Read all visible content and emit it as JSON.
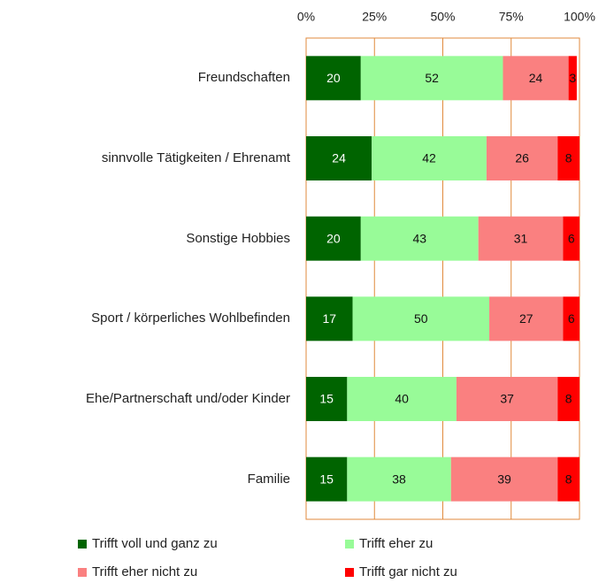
{
  "chart_data": {
    "type": "stacked-bar-horizontal",
    "categories": [
      "Freundschaften",
      "sinnvolle Tätigkeiten / Ehrenamt",
      "Sonstige Hobbies",
      "Sport / körperliches Wohlbefinden",
      "Ehe/Partnerschaft und/oder Kinder",
      "Familie"
    ],
    "series": [
      {
        "name": "Trifft voll und ganz zu",
        "color": "#006400",
        "values": [
          20,
          24,
          20,
          17,
          15,
          15
        ]
      },
      {
        "name": "Trifft eher zu",
        "color": "#98fb98",
        "values": [
          52,
          42,
          43,
          50,
          40,
          38
        ]
      },
      {
        "name": "Trifft eher nicht zu",
        "color": "#fa8080",
        "values": [
          24,
          26,
          31,
          27,
          37,
          39
        ]
      },
      {
        "name": "Trifft gar nicht zu",
        "color": "#ff0000",
        "values": [
          3,
          8,
          6,
          6,
          8,
          8
        ]
      }
    ],
    "xlim": [
      0,
      100
    ],
    "xticks": [
      {
        "value": 0,
        "label": "0%"
      },
      {
        "value": 25,
        "label": "25%"
      },
      {
        "value": 50,
        "label": "50%"
      },
      {
        "value": 75,
        "label": "75%"
      },
      {
        "value": 100,
        "label": "100%"
      }
    ],
    "grid": true
  }
}
